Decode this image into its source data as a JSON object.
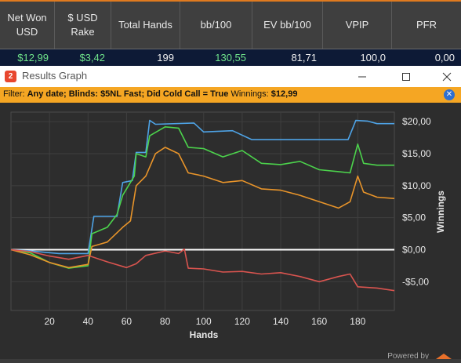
{
  "stats": {
    "headers": [
      "Net Won USD",
      "$ USD Rake",
      "Total Hands",
      "bb/100",
      "EV bb/100",
      "VPIP",
      "PFR"
    ],
    "values": [
      "$12,99",
      "$3,42",
      "199",
      "130,55",
      "81,71",
      "100,0",
      "0,00"
    ]
  },
  "window": {
    "title": "Results Graph",
    "minimize_icon": "minimize-icon",
    "maximize_icon": "maximize-icon",
    "close_icon": "close-icon"
  },
  "filter": {
    "label": "Filter:",
    "text": "Any date; Blinds: $5NL Fast; Did Cold Call = True",
    "winnings_label": "Winnings:",
    "winnings_value": "$12,99"
  },
  "footer": {
    "powered_by": "Powered by"
  },
  "chart_data": {
    "type": "line",
    "xlabel": "Hands",
    "ylabel": "Winnings",
    "xlim": [
      0,
      199
    ],
    "ylim": [
      -9.5,
      21.5
    ],
    "x_ticks": [
      20,
      40,
      60,
      80,
      100,
      120,
      140,
      160,
      180
    ],
    "y_ticks": [
      20,
      15,
      10,
      5,
      0,
      -5
    ],
    "y_tick_labels": [
      "$20,00",
      "$15,00",
      "$10,00",
      "$5,00",
      "$0,00",
      "-$5,00"
    ],
    "grid": true,
    "series": [
      {
        "color": "#4ea3e6",
        "points": [
          [
            0,
            0
          ],
          [
            10,
            -0.2
          ],
          [
            25,
            -0.6
          ],
          [
            40,
            -0.6
          ],
          [
            43,
            5.2
          ],
          [
            55,
            5.2
          ],
          [
            58,
            10.5
          ],
          [
            63,
            10.8
          ],
          [
            65,
            15.2
          ],
          [
            70,
            15.2
          ],
          [
            72,
            20.2
          ],
          [
            75,
            19.6
          ],
          [
            95,
            19.8
          ],
          [
            100,
            18.4
          ],
          [
            115,
            18.6
          ],
          [
            125,
            17.2
          ],
          [
            175,
            17.2
          ],
          [
            179,
            20.2
          ],
          [
            185,
            20.1
          ],
          [
            190,
            19.7
          ],
          [
            199,
            19.7
          ]
        ]
      },
      {
        "color": "#4cd34c",
        "points": [
          [
            0,
            0
          ],
          [
            10,
            -0.5
          ],
          [
            20,
            -2
          ],
          [
            30,
            -2.9
          ],
          [
            40,
            -2.5
          ],
          [
            42,
            2.5
          ],
          [
            50,
            3.5
          ],
          [
            55,
            5.5
          ],
          [
            58,
            8.5
          ],
          [
            64,
            11.5
          ],
          [
            65,
            15
          ],
          [
            70,
            14.5
          ],
          [
            72,
            17.8
          ],
          [
            80,
            19.2
          ],
          [
            87,
            19
          ],
          [
            92,
            16
          ],
          [
            100,
            15.8
          ],
          [
            110,
            14.5
          ],
          [
            120,
            15.5
          ],
          [
            130,
            13.5
          ],
          [
            140,
            13.3
          ],
          [
            150,
            13.8
          ],
          [
            160,
            12.5
          ],
          [
            170,
            12.2
          ],
          [
            176,
            12
          ],
          [
            180,
            16.5
          ],
          [
            183,
            13.5
          ],
          [
            190,
            13.2
          ],
          [
            199,
            13.2
          ]
        ]
      },
      {
        "color": "#e8942a",
        "points": [
          [
            0,
            0
          ],
          [
            10,
            -0.8
          ],
          [
            20,
            -2
          ],
          [
            30,
            -2.8
          ],
          [
            40,
            -2.3
          ],
          [
            42,
            0.5
          ],
          [
            50,
            1.2
          ],
          [
            58,
            3.5
          ],
          [
            62,
            4.5
          ],
          [
            65,
            10
          ],
          [
            70,
            11.5
          ],
          [
            75,
            15
          ],
          [
            80,
            16
          ],
          [
            87,
            15
          ],
          [
            92,
            12
          ],
          [
            100,
            11.5
          ],
          [
            110,
            10.5
          ],
          [
            120,
            10.8
          ],
          [
            130,
            9.5
          ],
          [
            140,
            9.3
          ],
          [
            150,
            8.5
          ],
          [
            160,
            7.5
          ],
          [
            170,
            6.5
          ],
          [
            176,
            7.5
          ],
          [
            180,
            11.5
          ],
          [
            183,
            9
          ],
          [
            190,
            8.2
          ],
          [
            199,
            8.0
          ]
        ]
      },
      {
        "color": "#d9544f",
        "points": [
          [
            0,
            0
          ],
          [
            10,
            -0.3
          ],
          [
            20,
            -1
          ],
          [
            30,
            -1.5
          ],
          [
            40,
            -0.9
          ],
          [
            50,
            -1.9
          ],
          [
            60,
            -2.8
          ],
          [
            65,
            -2.2
          ],
          [
            70,
            -0.9
          ],
          [
            80,
            -0.2
          ],
          [
            87,
            -0.6
          ],
          [
            90,
            0.1
          ],
          [
            92,
            -2.9
          ],
          [
            100,
            -3
          ],
          [
            110,
            -3.5
          ],
          [
            120,
            -3.4
          ],
          [
            130,
            -3.8
          ],
          [
            140,
            -3.6
          ],
          [
            150,
            -4.2
          ],
          [
            160,
            -5
          ],
          [
            170,
            -4.2
          ],
          [
            176,
            -3.8
          ],
          [
            180,
            -5.8
          ],
          [
            190,
            -6
          ],
          [
            199,
            -6.4
          ]
        ]
      }
    ]
  }
}
